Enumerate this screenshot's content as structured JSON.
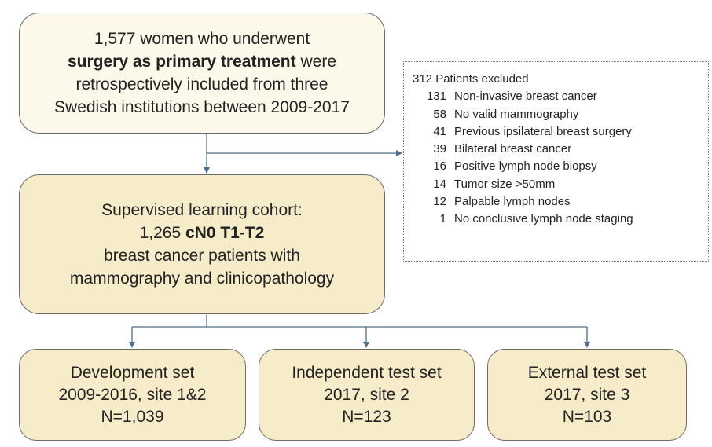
{
  "top_box": {
    "lines": [
      {
        "pre": "1,577 women who underwent",
        "bold": ""
      },
      {
        "pre": "",
        "bold": "surgery as primary treatment",
        "post": " were"
      },
      {
        "pre": "retrospectively included from three",
        "bold": ""
      },
      {
        "pre": "Swedish institutions between 2009-2017",
        "bold": ""
      }
    ]
  },
  "exclusion": {
    "header": "312 Patients excluded",
    "items": [
      {
        "count": "131",
        "label": "Non-invasive breast cancer"
      },
      {
        "count": "58",
        "label": "No valid mammography"
      },
      {
        "count": "41",
        "label": "Previous ipsilateral breast surgery"
      },
      {
        "count": "39",
        "label": "Bilateral breast cancer"
      },
      {
        "count": "16",
        "label": "Positive lymph node biopsy"
      },
      {
        "count": "14",
        "label": "Tumor size >50mm"
      },
      {
        "count": "12",
        "label": "Palpable lymph nodes"
      },
      {
        "count": "1",
        "label": "No conclusive lymph node staging"
      }
    ]
  },
  "cohort_box": {
    "line1": "Supervised learning cohort:",
    "line2_pre": "1,265 ",
    "line2_bold": "cN0 T1-T2",
    "line3": "breast cancer patients with",
    "line4": "mammography and clinicopathology"
  },
  "sets": [
    {
      "title": "Development set",
      "period": "2009-2016, site 1&2",
      "n": "N=1,039"
    },
    {
      "title": "Independent test set",
      "period": "2017, site 2",
      "n": "N=123"
    },
    {
      "title": "External test set",
      "period": "2017, site 3",
      "n": "N=103"
    }
  ],
  "colors": {
    "box_light": "#fcf8ea",
    "box_fill": "#f6ecc9",
    "border": "#6b6b6b",
    "arrow": "#4f6e8c"
  }
}
